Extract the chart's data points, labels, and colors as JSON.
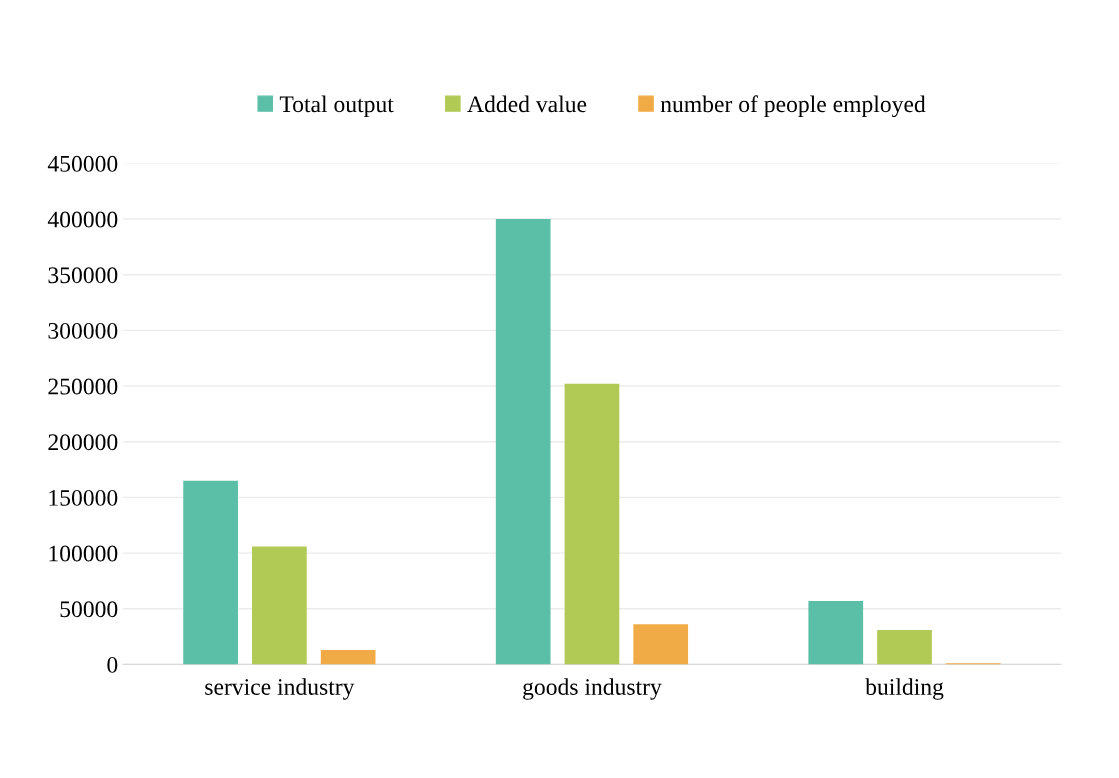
{
  "chart_data": {
    "type": "bar",
    "categories": [
      "service industry",
      "goods industry",
      "building"
    ],
    "series": [
      {
        "name": "Total output",
        "color": "#5bbea6",
        "values": [
          165000,
          400000,
          57000
        ]
      },
      {
        "name": "Added value",
        "color": "#b0ca55",
        "values": [
          106000,
          252000,
          31000
        ]
      },
      {
        "name": "number of people employed",
        "color": "#f1ab46",
        "values": [
          13000,
          36000,
          1000
        ]
      }
    ],
    "ylim": [
      0,
      450000
    ],
    "yticks": [
      0,
      50000,
      100000,
      150000,
      200000,
      250000,
      300000,
      350000,
      400000,
      450000
    ],
    "grid": "y",
    "legend": "top"
  }
}
